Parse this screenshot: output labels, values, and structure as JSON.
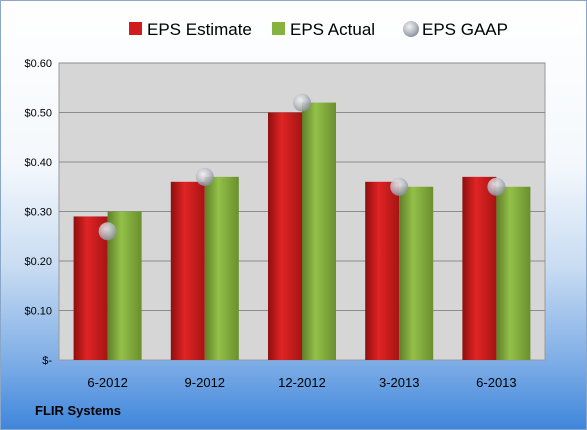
{
  "company": "FLIR Systems",
  "colors": {
    "estimate": "#cc1a1a",
    "actual": "#7ea83a",
    "gaap": "#b8bcc4",
    "plot_bg": "#d6d6d6",
    "gridline": "#8c8c8c"
  },
  "chart_data": {
    "type": "bar",
    "categories": [
      "6-2012",
      "9-2012",
      "12-2012",
      "3-2013",
      "6-2013"
    ],
    "series": [
      {
        "name": "EPS Estimate",
        "kind": "bar",
        "values": [
          0.29,
          0.36,
          0.5,
          0.36,
          0.37
        ]
      },
      {
        "name": "EPS Actual",
        "kind": "bar",
        "values": [
          0.3,
          0.37,
          0.52,
          0.35,
          0.35
        ]
      },
      {
        "name": "EPS GAAP",
        "kind": "marker",
        "values": [
          0.26,
          0.37,
          0.52,
          0.35,
          0.35
        ]
      }
    ],
    "ylim": [
      0,
      0.6
    ],
    "yticks": [
      0,
      0.1,
      0.2,
      0.3,
      0.4,
      0.5,
      0.6
    ],
    "ytick_labels": [
      "$-",
      "$0.10",
      "$0.20",
      "$0.30",
      "$0.40",
      "$0.50",
      "$0.60"
    ],
    "grid": true,
    "legend_position": "top"
  }
}
